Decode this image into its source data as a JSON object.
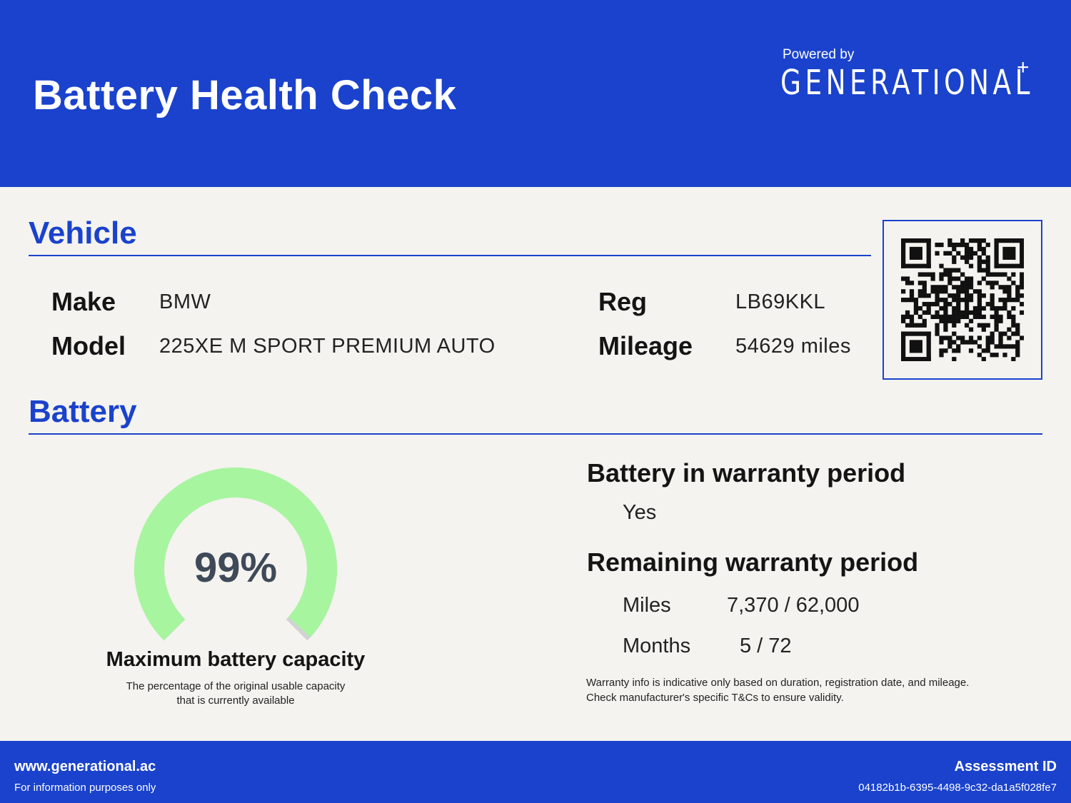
{
  "header": {
    "title": "Battery Health Check",
    "powered_by": "Powered by",
    "brand": "GENERATIONAL",
    "brand_mark": "+"
  },
  "vehicle": {
    "section_title": "Vehicle",
    "make_label": "Make",
    "make": "BMW",
    "model_label": "Model",
    "model": "225XE M SPORT PREMIUM AUTO",
    "reg_label": "Reg",
    "reg": "LB69KKL",
    "mileage_label": "Mileage",
    "mileage": "54629 miles"
  },
  "qr": {
    "icon": "qr-code-icon"
  },
  "battery": {
    "section_title": "Battery",
    "capacity_percent": 99,
    "capacity_text": "99%",
    "capacity_title": "Maximum battery capacity",
    "capacity_desc_line1": "The percentage of the original usable capacity",
    "capacity_desc_line2": "that is currently available",
    "gauge_color": "#a8f5a0",
    "gauge_track_color": "#cfd4d2"
  },
  "warranty": {
    "in_period_label": "Battery in warranty period",
    "in_period": "Yes",
    "remaining_label": "Remaining warranty period",
    "miles_label": "Miles",
    "miles": "7,370 / 62,000",
    "months_label": "Months",
    "months": "5 / 72",
    "disclaimer": "Warranty info is indicative only based on duration, registration date, and mileage. Check manufacturer's specific T&Cs to ensure validity."
  },
  "footer": {
    "url": "www.generational.ac",
    "note": "For information purposes only",
    "assessment_label": "Assessment ID",
    "assessment_id": "04182b1b-6395-4498-9c32-da1a5f028fe7"
  },
  "colors": {
    "brand_blue": "#1a42cc",
    "background": "#f4f3ef"
  }
}
